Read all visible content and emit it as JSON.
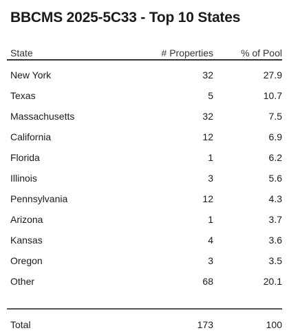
{
  "title": "BBCMS 2025-5C33 - Top 10 States",
  "columns": {
    "state": "State",
    "properties": "# Properties",
    "pool": "% of Pool"
  },
  "rows": [
    {
      "state": "New York",
      "properties": "32",
      "pool": "27.9"
    },
    {
      "state": "Texas",
      "properties": "5",
      "pool": "10.7"
    },
    {
      "state": "Massachusetts",
      "properties": "32",
      "pool": "7.5"
    },
    {
      "state": "California",
      "properties": "12",
      "pool": "6.9"
    },
    {
      "state": "Florida",
      "properties": "1",
      "pool": "6.2"
    },
    {
      "state": "Illinois",
      "properties": "3",
      "pool": "5.6"
    },
    {
      "state": "Pennsylvania",
      "properties": "12",
      "pool": "4.3"
    },
    {
      "state": "Arizona",
      "properties": "1",
      "pool": "3.7"
    },
    {
      "state": "Kansas",
      "properties": "4",
      "pool": "3.6"
    },
    {
      "state": "Oregon",
      "properties": "3",
      "pool": "3.5"
    },
    {
      "state": "Other",
      "properties": "68",
      "pool": "20.1"
    }
  ],
  "total": {
    "state": "Total",
    "properties": "173",
    "pool": "100"
  }
}
